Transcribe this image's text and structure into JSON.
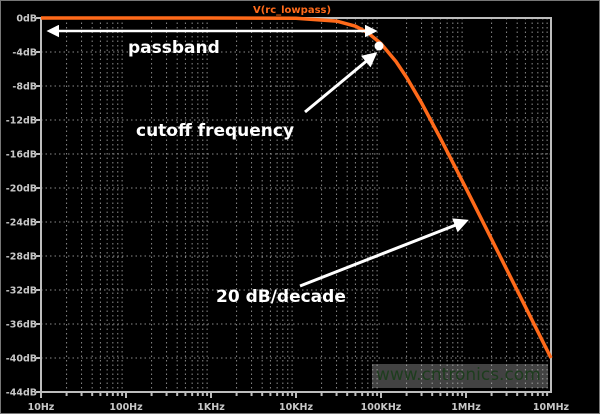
{
  "chart_data": {
    "type": "line",
    "title": "V(rc_lowpass)",
    "xlabel": "",
    "ylabel": "",
    "x_scale": "log",
    "xlim": [
      10,
      10000000
    ],
    "ylim": [
      -44,
      0
    ],
    "x_ticks": [
      {
        "value": 10,
        "label": "10Hz"
      },
      {
        "value": 100,
        "label": "100Hz"
      },
      {
        "value": 1000,
        "label": "1KHz"
      },
      {
        "value": 10000,
        "label": "10KHz"
      },
      {
        "value": 100000,
        "label": "100KHz"
      },
      {
        "value": 1000000,
        "label": "1MHz"
      },
      {
        "value": 10000000,
        "label": "10MHz"
      }
    ],
    "y_ticks": [
      {
        "value": 0,
        "label": "0dB"
      },
      {
        "value": -4,
        "label": "-4dB"
      },
      {
        "value": -8,
        "label": "-8dB"
      },
      {
        "value": -12,
        "label": "-12dB"
      },
      {
        "value": -16,
        "label": "-16dB"
      },
      {
        "value": -20,
        "label": "-20dB"
      },
      {
        "value": -24,
        "label": "-24dB"
      },
      {
        "value": -28,
        "label": "-28dB"
      },
      {
        "value": -32,
        "label": "-32dB"
      },
      {
        "value": -36,
        "label": "-36dB"
      },
      {
        "value": -40,
        "label": "-40dB"
      },
      {
        "value": -44,
        "label": "-44dB"
      }
    ],
    "grid": true,
    "series": [
      {
        "name": "V(rc_lowpass)",
        "color": "#ff6a1a",
        "x": [
          10,
          100,
          1000,
          10000,
          30000,
          50000,
          70000,
          100000,
          150000,
          200000,
          300000,
          500000,
          1000000,
          2000000,
          5000000,
          10000000
        ],
        "y": [
          0,
          0,
          0,
          -0.04,
          -0.37,
          -0.97,
          -1.73,
          -3.01,
          -5.12,
          -6.99,
          -10.0,
          -14.15,
          -20.04,
          -26.03,
          -33.98,
          -40.0
        ]
      }
    ],
    "annotations": {
      "passband": "passband",
      "cutoff": "cutoff frequency",
      "slope": "20 dB/decade"
    }
  },
  "watermark": "www.cntronics.com"
}
